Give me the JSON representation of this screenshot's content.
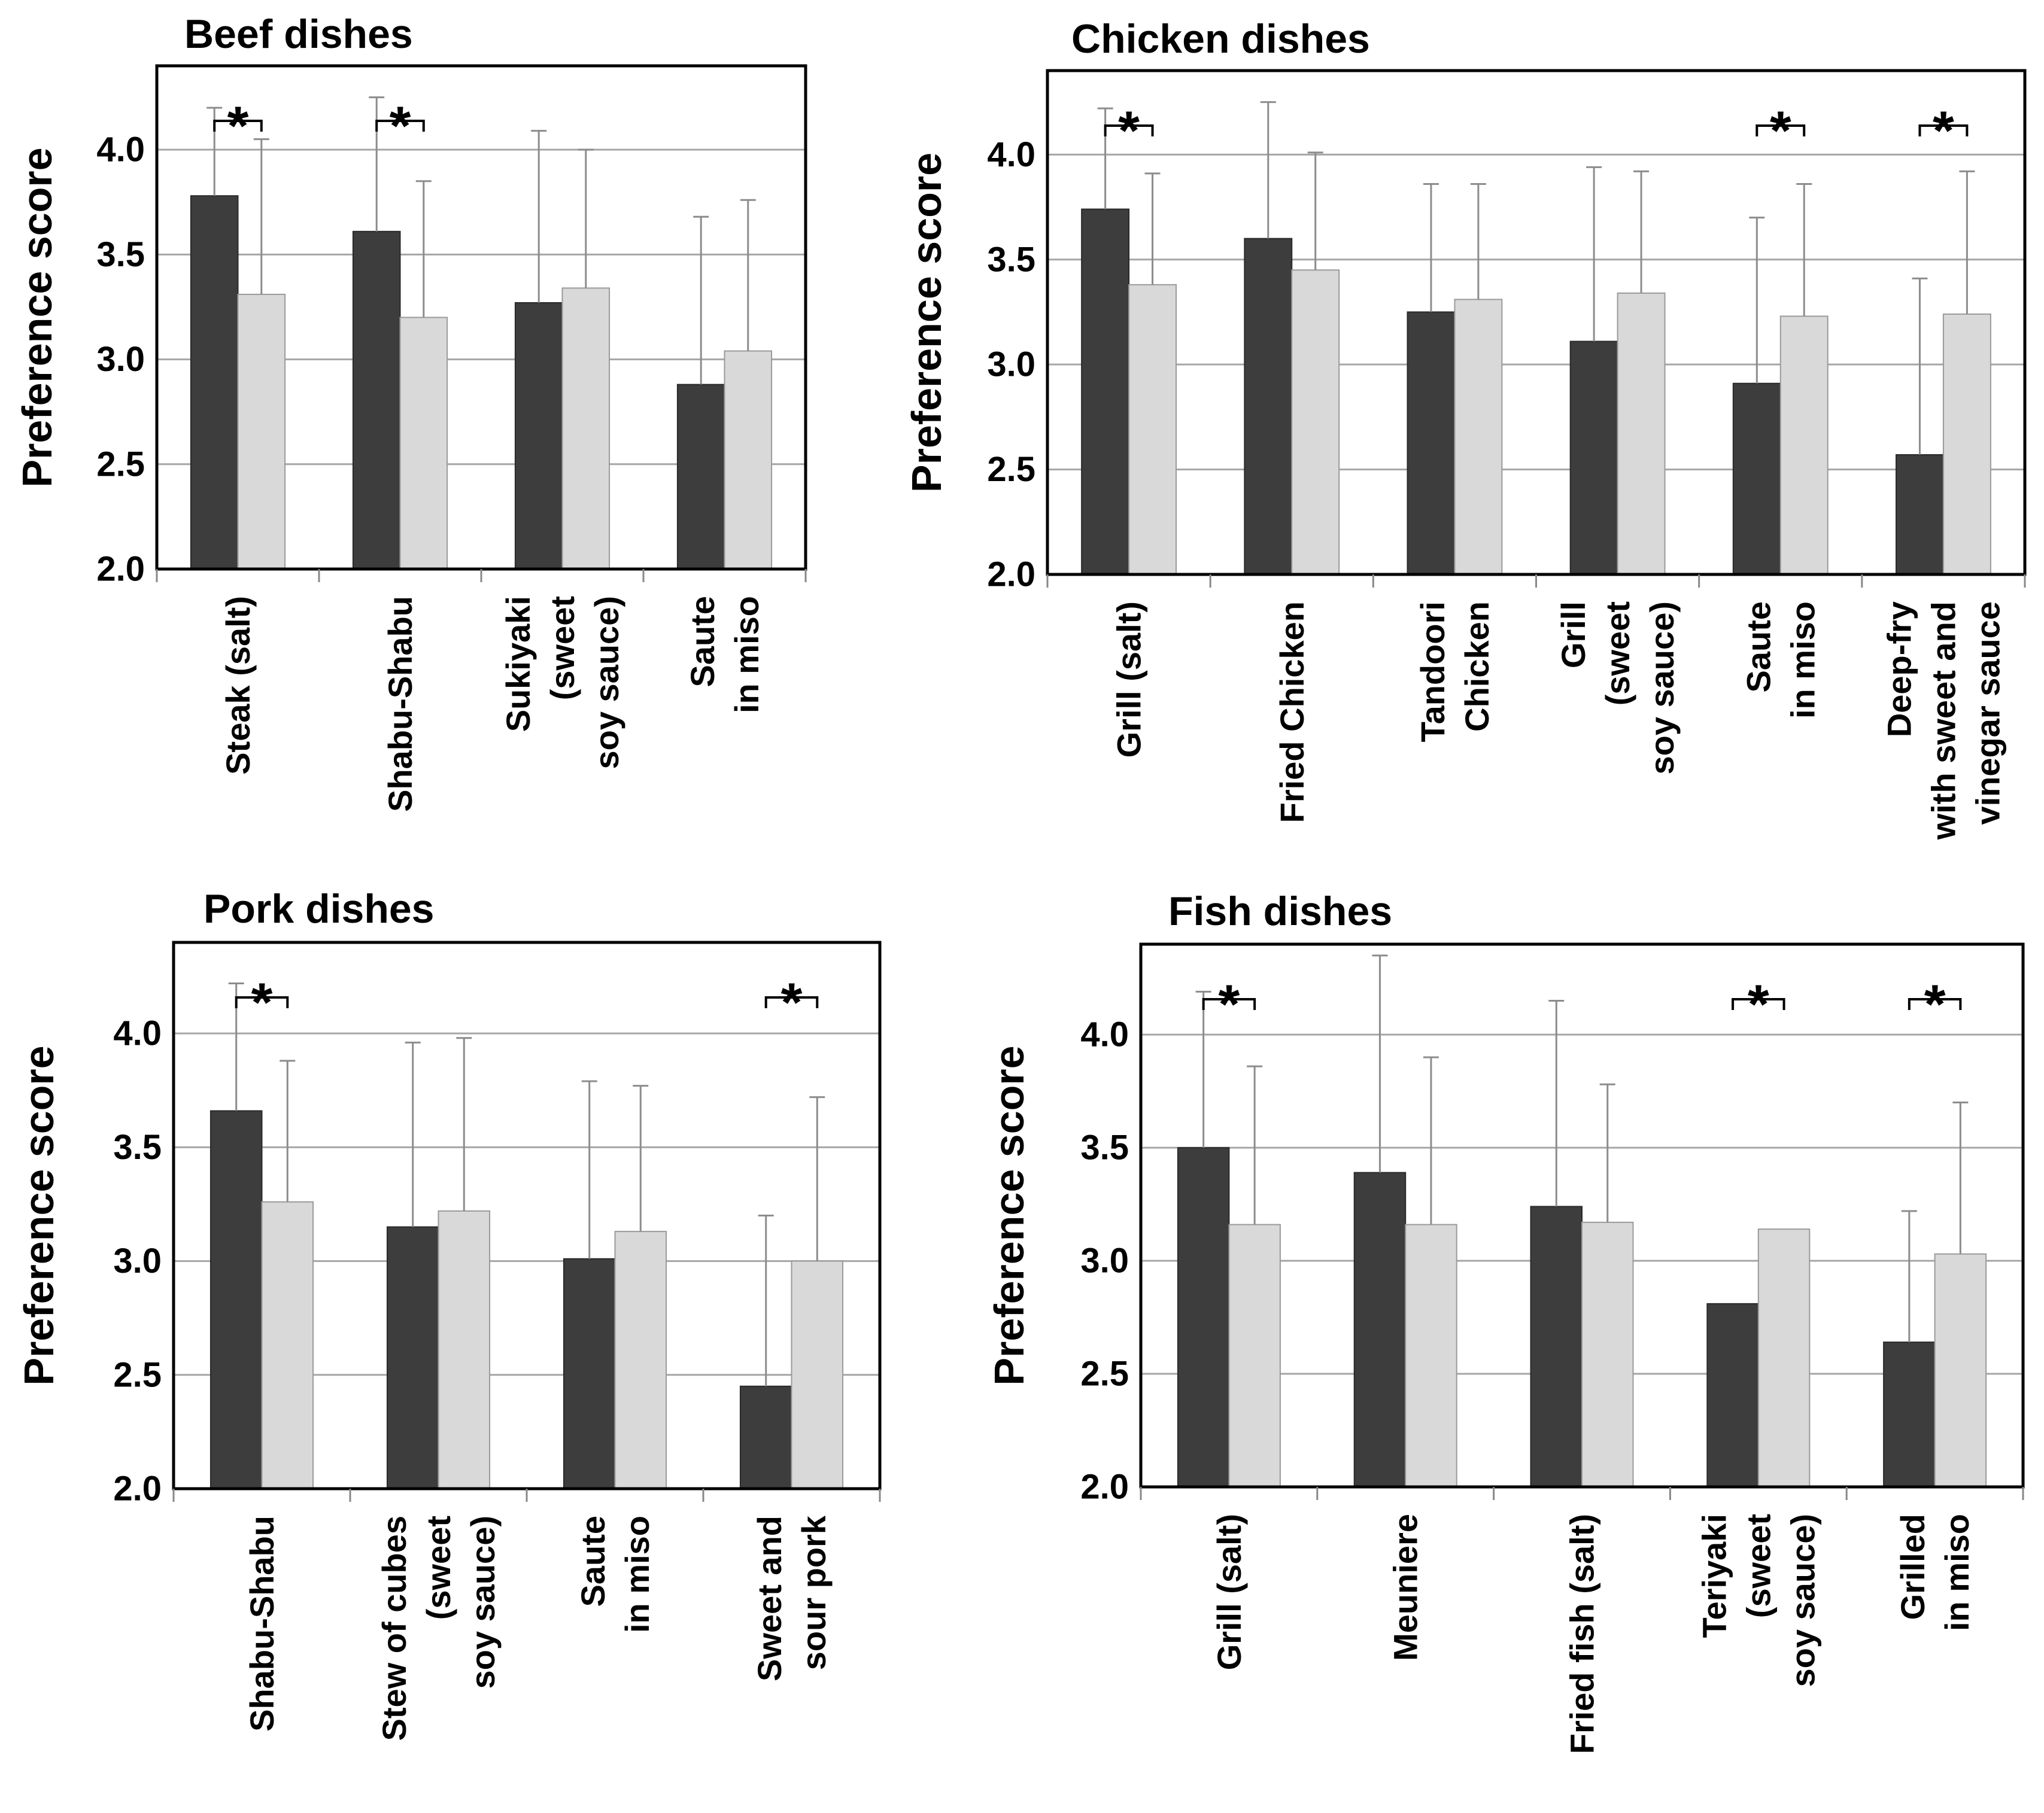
{
  "colors": {
    "series1": "#3d3d3d",
    "series2": "#d9d9d9",
    "grid": "#a6a6a6",
    "error": "#8c8c8c"
  },
  "chart_data": [
    {
      "type": "bar",
      "title": "Beef dishes",
      "ylabel": "Preference score",
      "ylim": [
        2.0,
        4.4
      ],
      "yticks": [
        "2.0",
        "2.5",
        "3.0",
        "3.5",
        "4.0"
      ],
      "grid": true,
      "categories": [
        [
          "Steak (salt)"
        ],
        [
          "Shabu-Shabu"
        ],
        [
          "Sukiyaki",
          "(sweet",
          "soy sauce)"
        ],
        [
          "Saute",
          "in miso"
        ]
      ],
      "series": [
        {
          "values": [
            3.78,
            3.61,
            3.27,
            2.88
          ],
          "errors": [
            0.42,
            0.64,
            0.82,
            0.8
          ]
        },
        {
          "values": [
            3.31,
            3.2,
            3.34,
            3.04
          ],
          "errors": [
            0.74,
            0.65,
            0.66,
            0.72
          ]
        }
      ],
      "significance": [
        {
          "category": 0,
          "marker": "*"
        },
        {
          "category": 1,
          "marker": "*"
        }
      ]
    },
    {
      "type": "bar",
      "title": "Chicken dishes",
      "ylabel": "Preference score",
      "ylim": [
        2.0,
        4.4
      ],
      "yticks": [
        "2.0",
        "2.5",
        "3.0",
        "3.5",
        "4.0"
      ],
      "grid": true,
      "categories": [
        [
          "Grill (salt)"
        ],
        [
          "Fried Chicken"
        ],
        [
          "Tandoori",
          "Chicken"
        ],
        [
          "Grill",
          "(sweet",
          "soy sauce)"
        ],
        [
          "Saute",
          "in miso"
        ],
        [
          "Deep-fry",
          "with sweet and",
          "vinegar sauce"
        ]
      ],
      "series": [
        {
          "values": [
            3.74,
            3.6,
            3.25,
            3.11,
            2.91,
            2.57
          ],
          "errors": [
            0.48,
            0.65,
            0.61,
            0.83,
            0.79,
            0.84
          ]
        },
        {
          "values": [
            3.38,
            3.45,
            3.31,
            3.34,
            3.23,
            3.24
          ],
          "errors": [
            0.53,
            0.56,
            0.55,
            0.58,
            0.63,
            0.68
          ]
        }
      ],
      "significance": [
        {
          "category": 0,
          "marker": "*"
        },
        {
          "category": 4,
          "marker": "*"
        },
        {
          "category": 5,
          "marker": "*"
        }
      ]
    },
    {
      "type": "bar",
      "title": "Pork dishes",
      "ylabel": "Preference score",
      "ylim": [
        2.0,
        4.4
      ],
      "yticks": [
        "2.0",
        "2.5",
        "3.0",
        "3.5",
        "4.0"
      ],
      "grid": true,
      "categories": [
        [
          "Shabu-Shabu"
        ],
        [
          "Stew of cubes",
          "(sweet",
          "soy sauce)"
        ],
        [
          "Saute",
          "in miso"
        ],
        [
          "Sweet and",
          "sour pork"
        ]
      ],
      "series": [
        {
          "values": [
            3.66,
            3.15,
            3.01,
            2.45
          ],
          "errors": [
            0.56,
            0.81,
            0.78,
            0.75
          ]
        },
        {
          "values": [
            3.26,
            3.22,
            3.13,
            3.0
          ],
          "errors": [
            0.62,
            0.76,
            0.64,
            0.72
          ]
        }
      ],
      "significance": [
        {
          "category": 0,
          "marker": "*"
        },
        {
          "category": 3,
          "marker": "*"
        }
      ]
    },
    {
      "type": "bar",
      "title": "Fish dishes",
      "ylabel": "Preference score",
      "ylim": [
        2.0,
        4.4
      ],
      "yticks": [
        "2.0",
        "2.5",
        "3.0",
        "3.5",
        "4.0"
      ],
      "grid": true,
      "categories": [
        [
          "Grill (salt)"
        ],
        [
          "Meuniere"
        ],
        [
          "Fried fish (salt)"
        ],
        [
          "Teriyaki",
          "(sweet",
          "soy sauce)"
        ],
        [
          "Grilled",
          "in miso"
        ]
      ],
      "series": [
        {
          "values": [
            3.5,
            3.39,
            3.24,
            2.81,
            2.64
          ],
          "errors": [
            0.69,
            0.96,
            0.91,
            0.0,
            0.58
          ]
        },
        {
          "values": [
            3.16,
            3.16,
            3.17,
            3.14,
            3.03
          ],
          "errors": [
            0.7,
            0.74,
            0.61,
            0.0,
            0.67
          ]
        }
      ],
      "significance": [
        {
          "category": 0,
          "marker": "*"
        },
        {
          "category": 3,
          "marker": "*"
        },
        {
          "category": 4,
          "marker": "*"
        }
      ]
    }
  ]
}
